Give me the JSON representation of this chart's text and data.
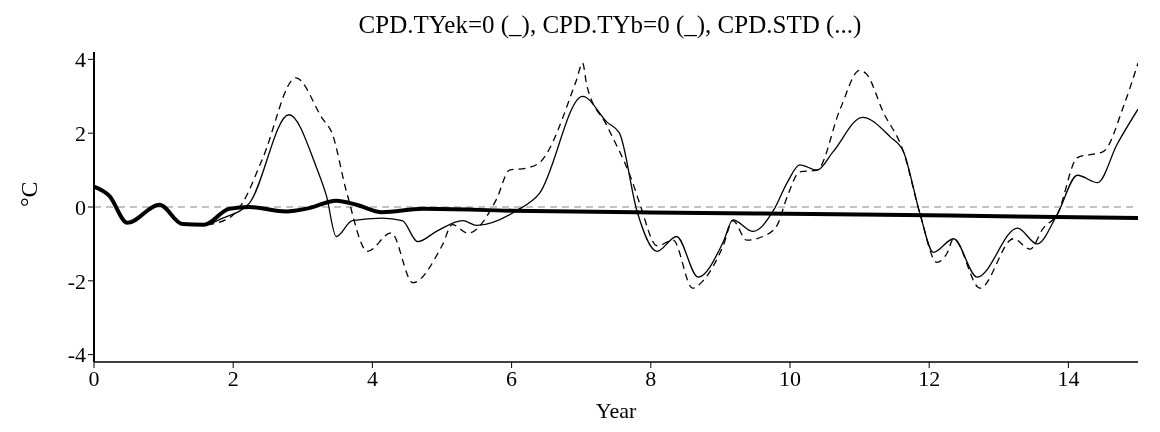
{
  "chart_data": {
    "type": "line",
    "title": "CPD.TYek=0 (_), CPD.TYb=0 (_), CPD.STD (...)",
    "xlabel": "Year",
    "ylabel": "°C",
    "xlim": [
      0,
      15
    ],
    "xticks": [
      0,
      2,
      4,
      6,
      8,
      10,
      12,
      14
    ],
    "ylim": [
      -4.2,
      4.2
    ],
    "yticks": [
      -4,
      -2,
      0,
      2,
      4
    ],
    "grid": false,
    "marker": "none",
    "ref_lines": [
      {
        "axis": "y",
        "value": 0,
        "line_style": "dashed",
        "color": "#888888"
      }
    ],
    "series": [
      {
        "color": "#000000",
        "line_style": "solid",
        "x": [
          0,
          0.22,
          0.48,
          0.94,
          1.27,
          1.58,
          1.94,
          2.23,
          2.76,
          3.09,
          3.48,
          3.77,
          4.14,
          4.72,
          6,
          8,
          11,
          13,
          15
        ],
        "values": [
          0.55,
          0.3,
          -0.43,
          0.06,
          -0.46,
          -0.48,
          -0.05,
          0,
          -0.12,
          -0.03,
          0.17,
          0.06,
          -0.14,
          -0.05,
          -0.1,
          -0.15,
          -0.2,
          -0.25,
          -0.3
        ]
      },
      {
        "color": "#000000",
        "line_style": "solid",
        "x": [
          0,
          0.22,
          0.48,
          0.94,
          1.27,
          1.58,
          1.85,
          2.23,
          2.8,
          3.2,
          3.34,
          3.48,
          3.71,
          4.14,
          4.43,
          4.65,
          4.92,
          5.3,
          5.5,
          6.07,
          6.4,
          7.02,
          7.37,
          7.55,
          7.8,
          8.09,
          8.37,
          8.68,
          9.04,
          9.18,
          9.47,
          9.76,
          9.96,
          10.14,
          10.39,
          10.62,
          11.04,
          11.44,
          11.63,
          11.87,
          12.06,
          12.35,
          12.69,
          13.27,
          13.55,
          13.84,
          14.13,
          14.42,
          14.7,
          15
        ],
        "values": [
          0.55,
          0.3,
          -0.43,
          0.06,
          -0.46,
          -0.48,
          -0.3,
          0.1,
          2.5,
          1.05,
          0.3,
          -0.8,
          -0.37,
          -0.3,
          -0.37,
          -0.94,
          -0.66,
          -0.37,
          -0.5,
          -0.1,
          0.37,
          3.0,
          2.3,
          2.0,
          -0.1,
          -1.2,
          -0.8,
          -1.9,
          -0.95,
          -0.35,
          -0.66,
          -0.1,
          0.66,
          1.14,
          1.0,
          1.5,
          2.43,
          1.9,
          1.5,
          -0.2,
          -1.23,
          -0.86,
          -1.9,
          -0.57,
          -1.0,
          -0.2,
          0.86,
          0.66,
          1.7,
          2.65
        ]
      },
      {
        "color": "#000000",
        "line_style": "dashed",
        "x": [
          0,
          0.22,
          0.48,
          0.94,
          1.27,
          1.58,
          1.94,
          2.13,
          2.42,
          2.9,
          3.28,
          3.42,
          3.63,
          3.93,
          4.27,
          4.58,
          5.0,
          5.15,
          5.37,
          5.78,
          5.97,
          6.2,
          6.4,
          6.93,
          7.02,
          7.08,
          7.37,
          7.74,
          7.84,
          8.09,
          8.32,
          8.6,
          8.75,
          9.04,
          9.18,
          9.38,
          9.61,
          9.81,
          9.96,
          10.14,
          10.39,
          10.72,
          11.0,
          11.1,
          11.34,
          11.63,
          11.87,
          12.11,
          12.26,
          12.35,
          12.73,
          13.21,
          13.45,
          13.64,
          13.84,
          14.13,
          14.5,
          14.8,
          15
        ],
        "values": [
          0.55,
          0.3,
          -0.43,
          0.06,
          -0.46,
          -0.48,
          -0.3,
          0.1,
          1.3,
          3.5,
          2.4,
          2.0,
          0.4,
          -1.2,
          -0.7,
          -2.05,
          -1.05,
          -0.48,
          -0.71,
          0.2,
          1.0,
          1.05,
          1.2,
          3.43,
          3.9,
          3.3,
          2.2,
          0.66,
          0.1,
          -1.05,
          -0.9,
          -2.2,
          -2.0,
          -1.05,
          -0.37,
          -0.9,
          -0.8,
          -0.51,
          0.28,
          0.95,
          1.0,
          2.65,
          3.7,
          3.6,
          2.57,
          1.5,
          -0.2,
          -1.5,
          -1.24,
          -0.86,
          -2.2,
          -0.86,
          -1.14,
          -0.57,
          -0.2,
          1.34,
          1.5,
          2.77,
          3.9
        ]
      }
    ]
  }
}
